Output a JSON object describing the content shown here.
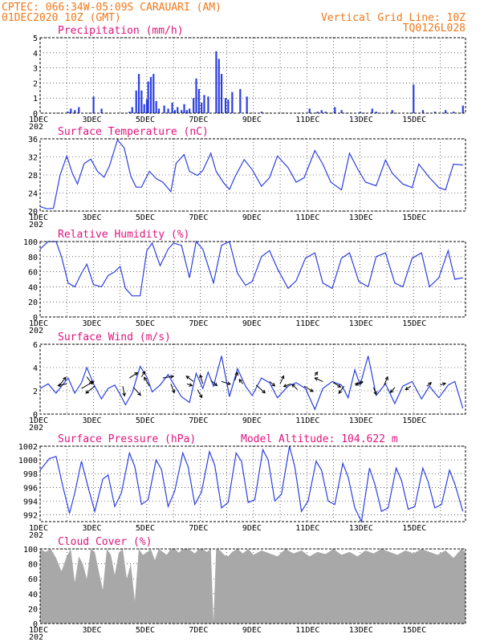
{
  "header": {
    "station": "CPTEC:   066:34W-05:09S   CARAUARI (AM)",
    "run": "01DEC2020 10Z (GMT)",
    "grid_note": "Vertical Grid Line: 10Z",
    "code": "TQ0126L028"
  },
  "colors": {
    "header": "#f07818",
    "panel_title": "#e0147c",
    "series": "#2b3fe0",
    "wind_arrow": "#000000",
    "cloud": "#a8a8a8"
  },
  "x_labels": [
    "1DEC",
    "3DEC",
    "5DEC",
    "7DEC",
    "9DEC",
    "11DEC",
    "13DEC",
    "15DEC"
  ],
  "x_label_prefix": "202",
  "chart_data": [
    {
      "id": "precip",
      "type": "bar",
      "title": "Precipitation (mm/h)",
      "ylim": [
        0,
        5
      ],
      "yticks": [
        0,
        1,
        2,
        3,
        4,
        5
      ],
      "x_unit": "days since 01DEC2020 10Z",
      "x": [
        1.05,
        1.15,
        1.3,
        1.45,
        2.0,
        2.3,
        3.35,
        3.45,
        3.6,
        3.7,
        3.8,
        3.9,
        4.0,
        4.05,
        4.15,
        4.25,
        4.35,
        4.45,
        4.65,
        4.8,
        4.95,
        5.05,
        5.15,
        5.3,
        5.4,
        5.5,
        5.6,
        5.75,
        5.85,
        5.95,
        6.05,
        6.15,
        6.3,
        6.6,
        6.7,
        6.8,
        6.95,
        7.05,
        7.2,
        7.5,
        7.75,
        8.3,
        10.1,
        10.4,
        10.55,
        10.7,
        11.05,
        11.3,
        12.0,
        12.45,
        12.6,
        13.2,
        14.0,
        14.35,
        14.8,
        15.2,
        15.5,
        15.85
      ],
      "values": [
        0.1,
        0.3,
        0.2,
        0.4,
        1.1,
        0.3,
        0.1,
        0.4,
        1.5,
        2.6,
        1.5,
        0.6,
        0.9,
        2.1,
        2.4,
        2.6,
        0.8,
        0.3,
        0.5,
        0.3,
        0.7,
        0.2,
        0.4,
        0.2,
        0.6,
        0.2,
        0.3,
        1.0,
        2.3,
        1.6,
        0.7,
        1.2,
        1.1,
        4.1,
        3.6,
        2.6,
        1.0,
        0.9,
        1.4,
        1.6,
        1.1,
        0.1,
        0.3,
        0.1,
        0.2,
        0.1,
        0.4,
        0.2,
        0.1,
        0.3,
        0.1,
        0.2,
        1.9,
        0.2,
        0.1,
        0.2,
        0.1,
        0.5
      ]
    },
    {
      "id": "temp",
      "type": "line",
      "title": "Surface Temperature (nC)",
      "ylim": [
        20,
        36
      ],
      "yticks": [
        20,
        24,
        28,
        32,
        36
      ],
      "x_unit": "days since 01DEC2020 10Z",
      "x": [
        0.0,
        0.25,
        0.5,
        0.75,
        1.0,
        1.2,
        1.4,
        1.65,
        1.9,
        2.15,
        2.4,
        2.6,
        2.9,
        3.15,
        3.4,
        3.6,
        3.8,
        3.9,
        4.1,
        4.35,
        4.6,
        4.9,
        5.1,
        5.4,
        5.6,
        5.9,
        6.1,
        6.4,
        6.6,
        6.9,
        7.1,
        7.3,
        7.65,
        7.95,
        8.3,
        8.6,
        8.9,
        9.3,
        9.6,
        9.9,
        10.3,
        10.6,
        10.9,
        11.3,
        11.6,
        11.9,
        12.2,
        12.6,
        12.95,
        13.2,
        13.6,
        13.95,
        14.2,
        14.6,
        14.95,
        15.2,
        15.5,
        15.85
      ],
      "values": [
        21,
        20.5,
        20.6,
        28,
        32.2,
        28.5,
        26,
        30.5,
        31.5,
        28.8,
        27.5,
        30,
        35.8,
        34,
        27.7,
        25.3,
        25.3,
        26.5,
        28.8,
        27.2,
        26.4,
        24.3,
        30.6,
        32.5,
        28.8,
        27.9,
        29,
        32.8,
        28.8,
        26.1,
        24.8,
        27.5,
        31.4,
        29.2,
        25.5,
        27.4,
        32.2,
        29.6,
        26.4,
        27.4,
        33.4,
        30.4,
        26.4,
        24.7,
        32.8,
        29.4,
        26.4,
        25.6,
        31.3,
        28.4,
        26,
        25.2,
        30.4,
        27.4,
        25.2,
        24.7,
        30.4,
        30.2
      ]
    },
    {
      "id": "rh",
      "type": "line",
      "title": "Relative Humidity (%)",
      "ylim": [
        0,
        100
      ],
      "yticks": [
        0,
        20,
        40,
        60,
        80,
        100
      ],
      "x_unit": "days since 01DEC2020 10Z",
      "x": [
        0.0,
        0.3,
        0.6,
        0.8,
        1.05,
        1.3,
        1.55,
        1.75,
        2.0,
        2.3,
        2.55,
        2.8,
        3.0,
        3.2,
        3.45,
        3.75,
        4.0,
        4.2,
        4.5,
        4.8,
        5.0,
        5.3,
        5.6,
        5.85,
        6.1,
        6.5,
        6.8,
        7.1,
        7.4,
        7.7,
        7.95,
        8.3,
        8.6,
        8.9,
        9.3,
        9.6,
        9.95,
        10.3,
        10.6,
        10.95,
        11.3,
        11.6,
        11.95,
        12.3,
        12.6,
        12.95,
        13.3,
        13.6,
        13.95,
        14.3,
        14.6,
        14.95,
        15.3,
        15.55,
        15.85
      ],
      "values": [
        90,
        100,
        100,
        80,
        45,
        40,
        58,
        70,
        43,
        40,
        55,
        60,
        67,
        38,
        28,
        28,
        88,
        98,
        68,
        90,
        98,
        95,
        52,
        100,
        90,
        45,
        95,
        100,
        58,
        42,
        47,
        80,
        88,
        64,
        38,
        48,
        78,
        85,
        45,
        38,
        78,
        85,
        47,
        40,
        80,
        85,
        45,
        40,
        78,
        85,
        40,
        52,
        88,
        50,
        52
      ]
    },
    {
      "id": "wind",
      "type": "line",
      "title": "Surface Wind (m/s)",
      "ylim": [
        0,
        6
      ],
      "yticks": [
        0,
        2,
        4,
        6
      ],
      "x_unit": "days since 01DEC2020 10Z",
      "x": [
        0.0,
        0.3,
        0.6,
        0.8,
        1.05,
        1.3,
        1.55,
        1.75,
        2.0,
        2.3,
        2.55,
        2.8,
        3.0,
        3.2,
        3.45,
        3.75,
        4.0,
        4.2,
        4.5,
        4.8,
        5.0,
        5.3,
        5.6,
        5.85,
        6.1,
        6.3,
        6.5,
        6.8,
        7.1,
        7.4,
        7.7,
        7.95,
        8.3,
        8.6,
        8.9,
        9.3,
        9.6,
        9.95,
        10.3,
        10.6,
        10.95,
        11.3,
        11.55,
        11.8,
        12.0,
        12.3,
        12.6,
        12.95,
        13.3,
        13.6,
        13.95,
        14.3,
        14.6,
        14.95,
        15.3,
        15.55,
        15.85
      ],
      "values": [
        2.2,
        2.6,
        1.8,
        2.4,
        3.1,
        1.8,
        2.7,
        4.0,
        2.6,
        1.3,
        2.2,
        2.5,
        1.7,
        0.8,
        1.8,
        4.1,
        3.2,
        1.9,
        2.5,
        3.4,
        2.6,
        1.5,
        1.0,
        3.5,
        2.2,
        3.6,
        2.4,
        5.0,
        1.5,
        3.9,
        2.4,
        1.6,
        3.1,
        2.7,
        1.4,
        2.4,
        2.7,
        2.2,
        0.4,
        2.2,
        2.8,
        2.5,
        1.4,
        3.8,
        2.5,
        5.0,
        1.6,
        2.6,
        0.9,
        2.4,
        2.8,
        1.3,
        2.4,
        1.4,
        2.5,
        2.8,
        0.5
      ],
      "arrows": {
        "x": [
          0.7,
          1.0,
          1.55,
          1.75,
          2.05,
          3.1,
          3.35,
          3.5,
          3.8,
          4.1,
          4.6,
          4.9,
          5.5,
          5.75,
          5.9,
          6.1,
          6.4,
          6.8,
          7.3,
          7.6,
          8.1,
          8.6,
          9.0,
          9.4,
          9.65,
          9.9,
          10.3,
          10.6,
          11.0,
          11.4,
          11.8,
          12.1,
          12.5,
          12.9,
          13.3,
          13.9,
          14.5,
          15.0
        ],
        "y": [
          2.4,
          2.6,
          2.2,
          3.2,
          2.4,
          2.4,
          3.1,
          2.3,
          3.2,
          2.4,
          3.1,
          2.6,
          2.6,
          2.8,
          2.1,
          2.6,
          2.9,
          2.8,
          2.9,
          2.6,
          2.5,
          2.8,
          2.6,
          2.6,
          2.1,
          2.4,
          3.3,
          2.8,
          2.7,
          2.4,
          2.6,
          2.8,
          2.3,
          2.5,
          2.3,
          2.4,
          2.4,
          2.5
        ],
        "u": [
          0.8,
          -1.0,
          1.4,
          0.6,
          -1.0,
          0.2,
          0.9,
          0.8,
          0.4,
          -0.6,
          1.2,
          0.4,
          0.6,
          -0.8,
          0.5,
          -0.3,
          0.7,
          1.0,
          0.3,
          -0.4,
          1.0,
          0.6,
          0.4,
          -0.8,
          -0.6,
          1.0,
          0.3,
          -0.9,
          0.8,
          -0.6,
          0.9,
          -0.8,
          0.3,
          0.4,
          -0.5,
          -0.6,
          0.5,
          0.6
        ],
        "v": [
          1.0,
          -0.2,
          0.8,
          -0.8,
          -0.8,
          -1.1,
          0.6,
          -0.9,
          0.6,
          1.0,
          0.2,
          -1.0,
          -0.2,
          0.6,
          -0.9,
          1.0,
          -0.6,
          -0.3,
          0.9,
          0.5,
          -0.9,
          -0.5,
          0.9,
          -0.3,
          0.6,
          -0.6,
          0.4,
          0.4,
          -0.5,
          -0.8,
          0.2,
          -0.4,
          -0.8,
          0.9,
          -0.6,
          -0.4,
          0.4,
          0.2
        ]
      }
    },
    {
      "id": "pressure",
      "type": "line",
      "title": "Surface Pressure (hPa)",
      "title2": "Model Altitude: 104.622 m",
      "ylim": [
        991,
        1002
      ],
      "yticks": [
        992,
        994,
        996,
        998,
        1000,
        1002
      ],
      "x_unit": "days since 01DEC2020 10Z",
      "x": [
        0.0,
        0.35,
        0.6,
        0.85,
        1.1,
        1.3,
        1.55,
        1.8,
        2.05,
        2.35,
        2.55,
        2.8,
        3.05,
        3.35,
        3.55,
        3.8,
        4.05,
        4.35,
        4.55,
        4.8,
        5.05,
        5.35,
        5.55,
        5.8,
        6.05,
        6.35,
        6.55,
        6.8,
        7.05,
        7.35,
        7.55,
        7.8,
        8.05,
        8.35,
        8.55,
        8.8,
        9.05,
        9.35,
        9.55,
        9.8,
        10.05,
        10.35,
        10.55,
        10.8,
        11.05,
        11.35,
        11.55,
        11.8,
        12.05,
        12.35,
        12.55,
        12.8,
        13.05,
        13.35,
        13.55,
        13.8,
        14.05,
        14.35,
        14.55,
        14.8,
        15.05,
        15.35,
        15.55,
        15.85
      ],
      "values": [
        998.5,
        1000.2,
        1000.5,
        996.2,
        992.2,
        995.2,
        999.8,
        996.0,
        992.5,
        997.2,
        997.8,
        993.2,
        995.2,
        1001.0,
        999.0,
        993.5,
        994.2,
        1000.0,
        998.6,
        993.2,
        995.5,
        1001.0,
        999.0,
        993.5,
        995.3,
        1001.2,
        999.2,
        993.0,
        993.8,
        1001.0,
        999.8,
        993.8,
        994.2,
        1001.5,
        1000.0,
        994.0,
        995.0,
        1002.0,
        999.0,
        992.5,
        994.0,
        999.8,
        998.5,
        994.0,
        993.5,
        999.5,
        997.5,
        993.0,
        991.0,
        998.8,
        996.5,
        992.5,
        993.0,
        998.8,
        997.0,
        992.8,
        993.2,
        998.8,
        996.8,
        993.0,
        993.5,
        998.5,
        996.5,
        992.5
      ]
    },
    {
      "id": "cloud",
      "type": "area",
      "title": "Cloud Cover (%)",
      "ylim": [
        0,
        100
      ],
      "yticks": [
        0,
        20,
        40,
        60,
        80,
        100
      ],
      "x_unit": "days since 01DEC2020 10Z",
      "x": [
        0.0,
        0.2,
        0.4,
        0.6,
        0.8,
        1.0,
        1.15,
        1.3,
        1.45,
        1.6,
        1.75,
        1.9,
        2.05,
        2.2,
        2.35,
        2.5,
        2.65,
        2.8,
        2.95,
        3.1,
        3.25,
        3.4,
        3.55,
        3.7,
        3.85,
        4.0,
        4.15,
        4.3,
        4.45,
        4.6,
        4.75,
        4.9,
        5.05,
        5.2,
        5.35,
        5.5,
        5.65,
        5.8,
        5.95,
        6.1,
        6.25,
        6.4,
        6.5,
        6.6,
        6.75,
        6.9,
        7.05,
        7.2,
        7.4,
        7.6,
        7.8,
        8.0,
        8.3,
        8.6,
        8.9,
        9.2,
        9.5,
        9.8,
        10.1,
        10.4,
        10.7,
        11.0,
        11.3,
        11.6,
        11.9,
        12.2,
        12.5,
        12.8,
        13.1,
        13.4,
        13.7,
        14.0,
        14.3,
        14.6,
        14.9,
        15.2,
        15.5,
        15.8,
        15.95
      ],
      "values": [
        100,
        96,
        100,
        88,
        70,
        90,
        100,
        55,
        90,
        80,
        60,
        100,
        96,
        70,
        45,
        100,
        92,
        65,
        95,
        100,
        60,
        80,
        30,
        100,
        92,
        95,
        100,
        85,
        100,
        96,
        92,
        100,
        100,
        95,
        100,
        100,
        98,
        94,
        100,
        100,
        96,
        100,
        3,
        100,
        98,
        92,
        90,
        96,
        100,
        94,
        100,
        92,
        98,
        94,
        90,
        100,
        94,
        98,
        90,
        96,
        93,
        100,
        92,
        96,
        90,
        98,
        94,
        100,
        96,
        92,
        98,
        94,
        100,
        96,
        92,
        98,
        88,
        100,
        96
      ]
    }
  ]
}
